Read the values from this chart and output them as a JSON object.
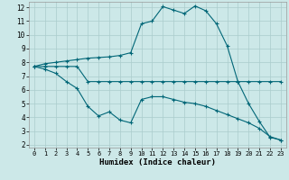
{
  "background_color": "#cce8e8",
  "grid_color": "#aacccc",
  "line_color": "#006677",
  "xlabel": "Humidex (Indice chaleur)",
  "xlim": [
    -0.5,
    23.5
  ],
  "ylim": [
    1.8,
    12.4
  ],
  "yticks": [
    2,
    3,
    4,
    5,
    6,
    7,
    8,
    9,
    10,
    11,
    12
  ],
  "xticks": [
    0,
    1,
    2,
    3,
    4,
    5,
    6,
    7,
    8,
    9,
    10,
    11,
    12,
    13,
    14,
    15,
    16,
    17,
    18,
    19,
    20,
    21,
    22,
    23
  ],
  "line1_x": [
    0,
    1,
    2,
    3,
    4,
    5,
    6,
    7,
    8,
    9,
    10,
    11,
    12,
    13,
    14,
    15,
    16,
    17,
    18,
    19,
    20,
    21,
    22,
    23
  ],
  "line1_y": [
    7.7,
    7.9,
    8.0,
    8.1,
    8.2,
    8.3,
    8.35,
    8.4,
    8.5,
    8.7,
    10.8,
    11.0,
    12.05,
    11.8,
    11.55,
    12.1,
    11.75,
    10.8,
    9.2,
    6.6,
    5.0,
    3.7,
    2.55,
    2.35
  ],
  "line2_x": [
    0,
    1,
    2,
    3,
    4,
    5,
    6,
    7,
    8,
    9,
    10,
    11,
    12,
    13,
    14,
    15,
    16,
    17,
    18,
    19,
    20,
    21,
    22,
    23
  ],
  "line2_y": [
    7.7,
    7.7,
    7.7,
    7.7,
    7.7,
    6.6,
    6.6,
    6.6,
    6.6,
    6.6,
    6.6,
    6.6,
    6.6,
    6.6,
    6.6,
    6.6,
    6.6,
    6.6,
    6.6,
    6.6,
    6.6,
    6.6,
    6.6,
    6.6
  ],
  "line3_x": [
    0,
    1,
    2,
    3,
    4,
    5,
    6,
    7,
    8,
    9,
    10,
    11,
    12,
    13,
    14,
    15,
    16,
    17,
    18,
    19,
    20,
    21,
    22,
    23
  ],
  "line3_y": [
    7.7,
    7.5,
    7.2,
    6.6,
    6.1,
    4.8,
    4.1,
    4.4,
    3.8,
    3.6,
    5.3,
    5.5,
    5.5,
    5.3,
    5.1,
    5.0,
    4.8,
    4.5,
    4.2,
    3.9,
    3.6,
    3.2,
    2.6,
    2.35
  ]
}
